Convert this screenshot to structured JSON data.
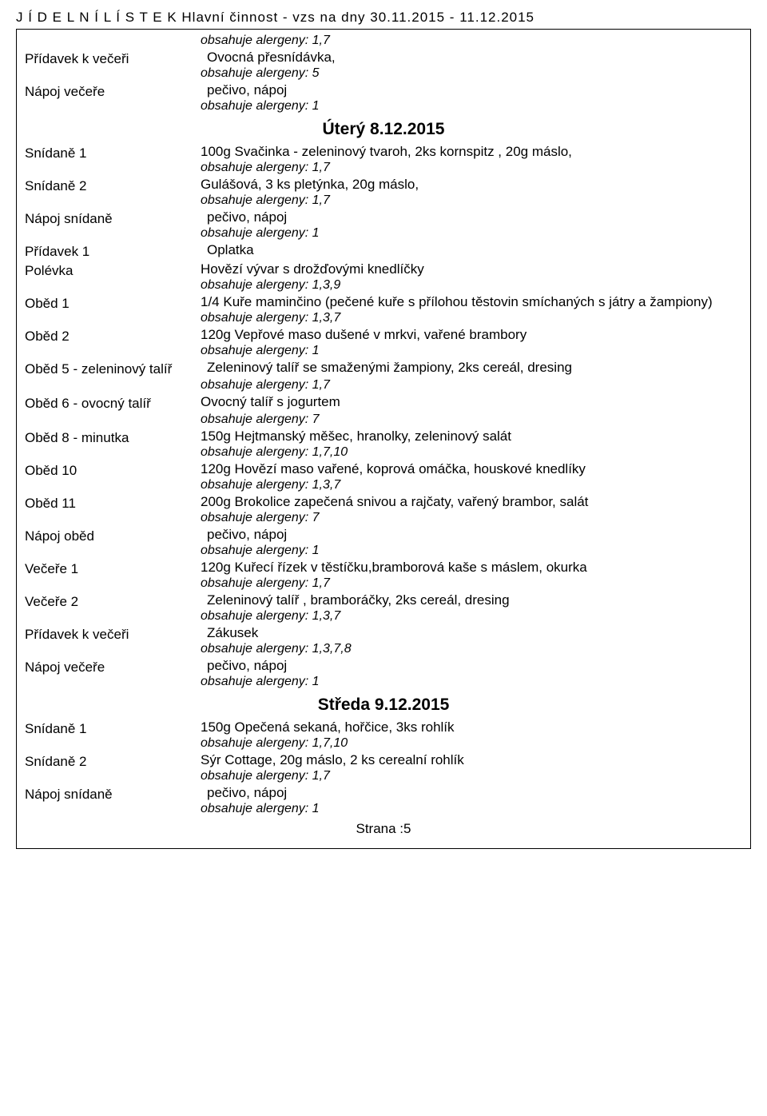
{
  "header": "J Í D E L N Í   L Í S T E K   Hlavní činnost - vzs   na dny 30.11.2015 - 11.12.2015",
  "top": {
    "allergen_first": "obsahuje alergeny: 1,7",
    "pridavek_veceri": {
      "label": "Přídavek k večeři",
      "text": "Ovocná přesnídávka,",
      "allergen": "obsahuje alergeny: 5"
    },
    "napoj_vecere": {
      "label": "Nápoj večeře",
      "text": "pečivo, nápoj",
      "allergen": "obsahuje alergeny: 1"
    }
  },
  "day1": {
    "title": "Úterý 8.12.2015",
    "snidane1": {
      "label": "Snídaně 1",
      "text": "100g Svačinka - zeleninový tvaroh, 2ks kornspitz , 20g máslo,",
      "allergen": "obsahuje alergeny: 1,7"
    },
    "snidane2": {
      "label": "Snídaně 2",
      "text": "Gulášová, 3 ks pletýnka, 20g máslo,",
      "allergen": "obsahuje alergeny: 1,7"
    },
    "napoj_snidane": {
      "label": "Nápoj snídaně",
      "text": "pečivo, nápoj",
      "allergen": "obsahuje alergeny: 1"
    },
    "pridavek1": {
      "label": "Přídavek 1",
      "text": "Oplatka"
    },
    "polevka": {
      "label": "Polévka",
      "text": "Hovězí vývar s drožďovými knedlíčky",
      "allergen": "obsahuje alergeny: 1,3,9"
    },
    "obed1": {
      "label": "Oběd 1",
      "text": "1/4 Kuře  maminčino  (pečené kuře s přílohou těstovin smíchaných s játry a žampiony)",
      "allergen": "obsahuje alergeny: 1,3,7"
    },
    "obed2": {
      "label": "Oběd 2",
      "text": "120g Vepřové maso dušené v mrkvi, vařené brambory",
      "allergen": "obsahuje alergeny: 1"
    },
    "obed5": {
      "label": "Oběd 5 - zeleninový talíř",
      "text": "Zeleninový talíř se smaženými žampiony, 2ks cereál, dresing",
      "allergen": "obsahuje alergeny: 1,7"
    },
    "obed6": {
      "label": "Oběd 6 - ovocný talíř",
      "text": "Ovocný talíř s jogurtem",
      "allergen": "obsahuje alergeny: 7"
    },
    "obed8": {
      "label": "Oběd 8 - minutka",
      "text": "150g Hejtmanský měšec, hranolky, zeleninový salát",
      "allergen": "obsahuje alergeny: 1,7,10"
    },
    "obed10": {
      "label": "Oběd 10",
      "text": "120g Hovězí maso vařené, koprová omáčka, houskové knedlíky",
      "allergen": "obsahuje alergeny: 1,3,7"
    },
    "obed11": {
      "label": "Oběd 11",
      "text": "200g Brokolice zapečená snivou a rajčaty, vařený brambor, salát",
      "allergen": "obsahuje alergeny: 7"
    },
    "napoj_obed": {
      "label": "Nápoj oběd",
      "text": "pečivo, nápoj",
      "allergen": "obsahuje alergeny: 1"
    },
    "vecere1": {
      "label": "Večeře 1",
      "text": "120g Kuřecí řízek v těstíčku,bramborová kaše s máslem, okurka",
      "allergen": "obsahuje alergeny: 1,7"
    },
    "vecere2": {
      "label": "Večeře 2",
      "text": "Zeleninový talíř , bramboráčky, 2ks cereál, dresing",
      "allergen": "obsahuje alergeny: 1,3,7"
    },
    "pridavek_veceri": {
      "label": "Přídavek k večeři",
      "text": "Zákusek",
      "allergen": "obsahuje alergeny: 1,3,7,8"
    },
    "napoj_vecere": {
      "label": "Nápoj večeře",
      "text": "pečivo, nápoj",
      "allergen": "obsahuje alergeny: 1"
    }
  },
  "day2": {
    "title": "Středa 9.12.2015",
    "snidane1": {
      "label": "Snídaně 1",
      "text": "150g Opečená sekaná, hořčice, 3ks rohlík",
      "allergen": "obsahuje alergeny: 1,7,10"
    },
    "snidane2": {
      "label": "Snídaně 2",
      "text": "Sýr Cottage, 20g máslo, 2 ks cerealní rohlík",
      "allergen": "obsahuje alergeny: 1,7"
    },
    "napoj_snidane": {
      "label": "Nápoj snídaně",
      "text": "pečivo, nápoj",
      "allergen": "obsahuje alergeny: 1"
    }
  },
  "footer": "Strana :5"
}
